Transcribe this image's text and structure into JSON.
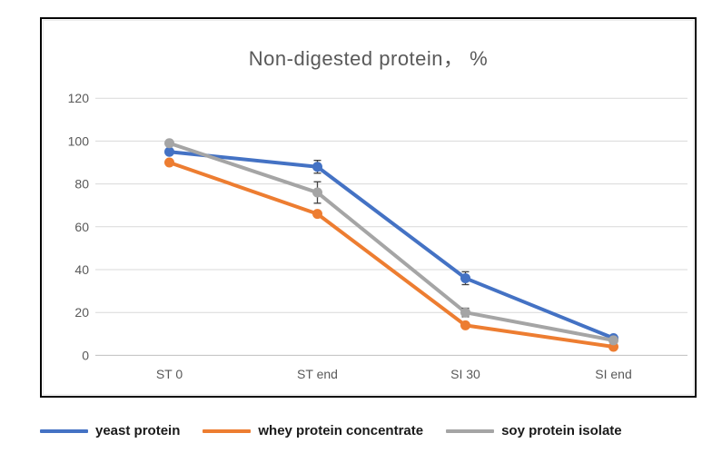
{
  "chart_data": {
    "type": "line",
    "title": "Non-digested protein， %",
    "categories": [
      "ST 0",
      "ST end",
      "SI 30",
      "SI end"
    ],
    "series": [
      {
        "name": "yeast protein",
        "color": "#4472C4",
        "values": [
          95,
          88,
          36,
          8
        ],
        "errors": [
          0,
          3,
          3,
          0
        ]
      },
      {
        "name": "whey protein concentrate",
        "color": "#ED7D31",
        "values": [
          90,
          66,
          14,
          4
        ],
        "errors": [
          0,
          0,
          0,
          0
        ]
      },
      {
        "name": "soy protein isolate",
        "color": "#A5A5A5",
        "values": [
          99,
          76,
          20,
          7
        ],
        "errors": [
          0,
          5,
          2,
          0
        ]
      }
    ],
    "ylim": [
      0,
      120
    ],
    "yticks": [
      0,
      20,
      40,
      60,
      80,
      100,
      120
    ],
    "grid": true,
    "legend_position": "bottom",
    "marker": "circle"
  },
  "styles": {
    "title_color": "#595959",
    "axis_label_color": "#595959",
    "gridline_color": "#d9d9d9",
    "axis_line_color": "#bfbfbf",
    "error_bar_color": "#404040",
    "legend_text_color": "#1a1a1a",
    "frame_border_color": "#000000",
    "background_color": "#ffffff"
  }
}
